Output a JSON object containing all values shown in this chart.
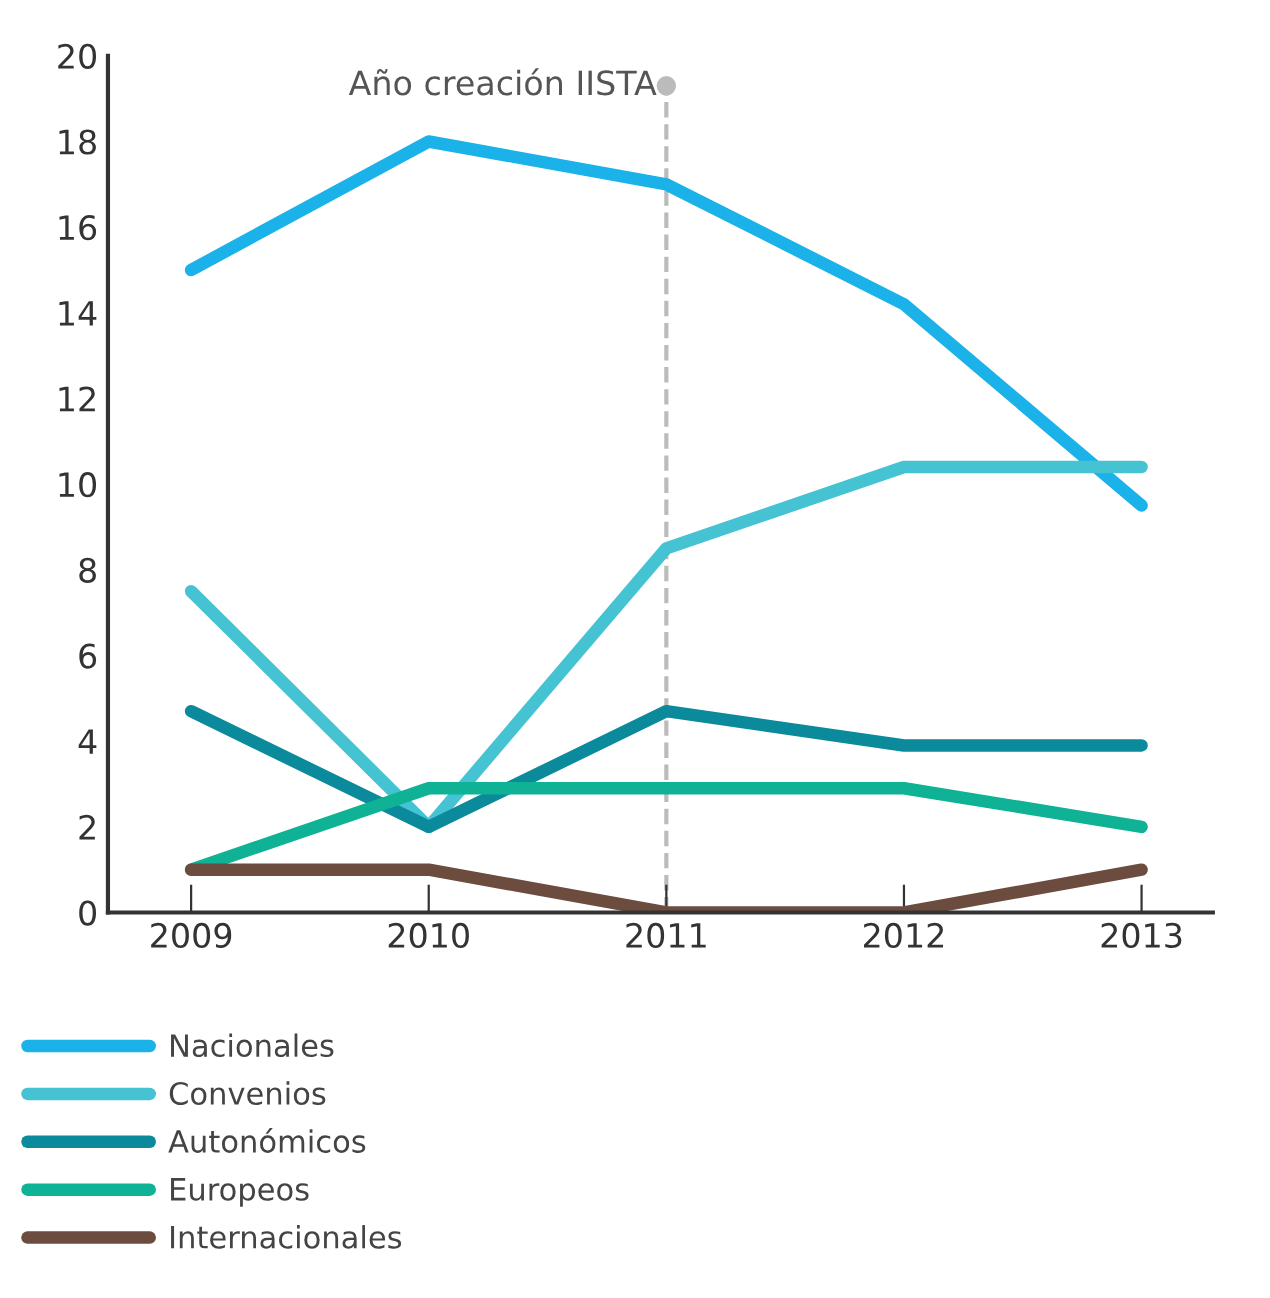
{
  "chart_data": {
    "type": "line",
    "categories": [
      "2009",
      "2010",
      "2011",
      "2012",
      "2013"
    ],
    "series": [
      {
        "name": "Nacionales",
        "color": "#1ab2e8",
        "values": [
          15,
          18,
          17,
          14.2,
          9.5
        ]
      },
      {
        "name": "Convenios",
        "color": "#45c3d3",
        "values": [
          7.5,
          2,
          8.5,
          10.4,
          10.4
        ]
      },
      {
        "name": "Autonómicos",
        "color": "#0a8a9a",
        "values": [
          4.7,
          2,
          4.7,
          3.9,
          3.9
        ]
      },
      {
        "name": "Europeos",
        "color": "#0fb294",
        "values": [
          1,
          2.9,
          2.9,
          2.9,
          2
        ]
      },
      {
        "name": "Internacionales",
        "color": "#6b4c3e",
        "values": [
          1,
          1,
          0,
          0,
          1
        ]
      }
    ],
    "ylim": [
      0,
      20
    ],
    "yticks": [
      0,
      2,
      4,
      6,
      8,
      10,
      12,
      14,
      16,
      18,
      20
    ],
    "ref_lines": [
      {
        "axis": "x",
        "value": "2011",
        "label": "Año creación IISTA",
        "color": "#bbbbbb",
        "line_style": "dashed"
      }
    ],
    "grid": false,
    "legend": "bottom",
    "marker": "none",
    "line_style": "solid"
  }
}
